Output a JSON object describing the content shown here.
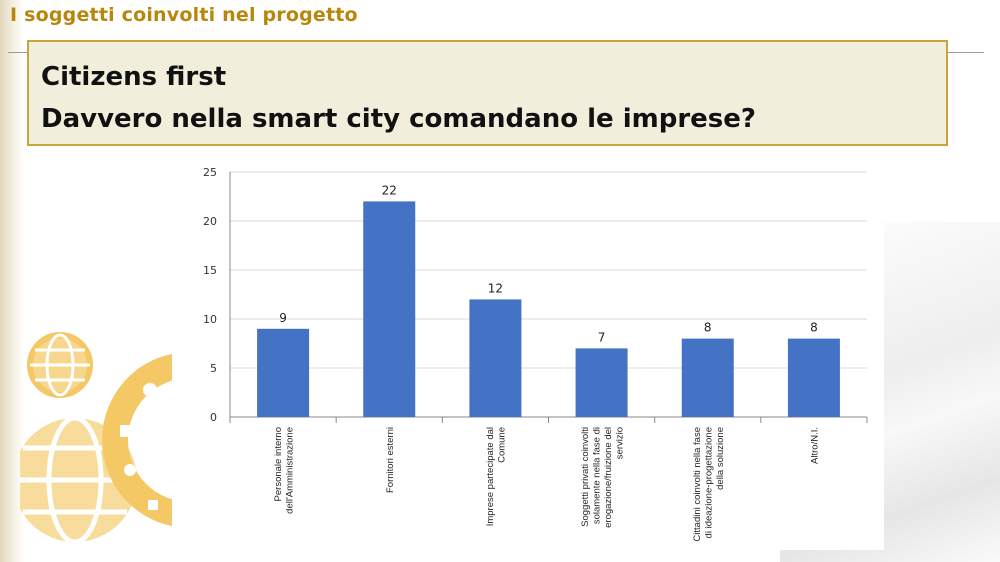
{
  "header": {
    "kicker": "I soggetti coinvolti nel progetto",
    "title_line1": "Citizens first",
    "title_line2": "Davvero nella smart city comandano le imprese?"
  },
  "colors": {
    "accent": "#b8860b",
    "box_fill": "#f2eedc",
    "box_border": "#c9a43a",
    "bar": "#4472c4",
    "decor": "#f3c865"
  },
  "decor": {
    "icon_names": [
      "globe-icon",
      "globe-icon",
      "smart-city-icons-circle"
    ]
  },
  "chart_data": {
    "type": "bar",
    "categories": [
      [
        "Personale interno",
        "dell'Amministrazione"
      ],
      [
        "Fornitori esterni"
      ],
      [
        "Imprese partecipate dal",
        "Comune"
      ],
      [
        "Soggetti privati coinvolti",
        "solamente nella fase di",
        "erogazione/fruizione del",
        "servizio"
      ],
      [
        "Cittadini coinvolti nella fase",
        "di ideazione-progettazione",
        "della soluzione"
      ],
      [
        "Altro/N.I."
      ]
    ],
    "values": [
      9,
      22,
      12,
      7,
      8,
      8
    ],
    "data_labels": [
      "9",
      "22",
      "12",
      "7",
      "8",
      "8"
    ],
    "y_ticks": [
      "0",
      "5",
      "10",
      "15",
      "20",
      "25"
    ],
    "ylim": [
      0,
      25
    ],
    "title": "",
    "xlabel": "",
    "ylabel": "",
    "grid": true,
    "legend": "none"
  }
}
